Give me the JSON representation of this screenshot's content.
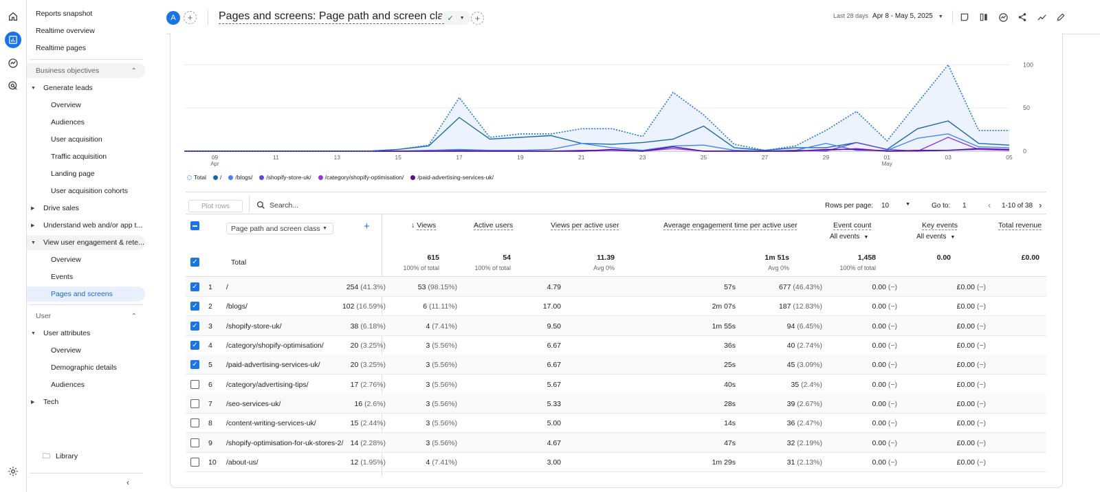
{
  "sidebar": {
    "items": [
      {
        "label": "Reports snapshot"
      },
      {
        "label": "Realtime overview"
      },
      {
        "label": "Realtime pages"
      },
      {
        "label": "Business objectives"
      },
      {
        "label": "Generate leads"
      },
      {
        "label": "Overview"
      },
      {
        "label": "Audiences"
      },
      {
        "label": "User acquisition"
      },
      {
        "label": "Traffic acquisition"
      },
      {
        "label": "Landing page"
      },
      {
        "label": "User acquisition cohorts"
      },
      {
        "label": "Drive sales"
      },
      {
        "label": "Understand web and/or app t..."
      },
      {
        "label": "View user engagement & rete..."
      },
      {
        "label": "Overview"
      },
      {
        "label": "Events"
      },
      {
        "label": "Pages and screens"
      },
      {
        "label": "User"
      },
      {
        "label": "User attributes"
      },
      {
        "label": "Overview"
      },
      {
        "label": "Demographic details"
      },
      {
        "label": "Audiences"
      },
      {
        "label": "Tech"
      }
    ],
    "library": "Library"
  },
  "header": {
    "avatar": "A",
    "title": "Pages and screens: Page path and screen class",
    "date_label": "Last 28 days",
    "date_range": "Apr 8 - May 5, 2025"
  },
  "chart_data": {
    "type": "line",
    "x": [
      "Apr 8",
      "Apr 9",
      "Apr 10",
      "Apr 11",
      "Apr 12",
      "Apr 13",
      "Apr 14",
      "Apr 15",
      "Apr 16",
      "Apr 17",
      "Apr 18",
      "Apr 19",
      "Apr 20",
      "Apr 21",
      "Apr 22",
      "Apr 23",
      "Apr 24",
      "Apr 25",
      "Apr 26",
      "Apr 27",
      "Apr 28",
      "Apr 29",
      "Apr 30",
      "May 1",
      "May 2",
      "May 3",
      "May 4",
      "May 5"
    ],
    "x_ticks": [
      {
        "day": "09",
        "month": "Apr"
      },
      {
        "day": "11",
        "month": ""
      },
      {
        "day": "13",
        "month": ""
      },
      {
        "day": "15",
        "month": ""
      },
      {
        "day": "17",
        "month": ""
      },
      {
        "day": "19",
        "month": ""
      },
      {
        "day": "21",
        "month": ""
      },
      {
        "day": "23",
        "month": ""
      },
      {
        "day": "25",
        "month": ""
      },
      {
        "day": "27",
        "month": ""
      },
      {
        "day": "29",
        "month": ""
      },
      {
        "day": "01",
        "month": "May"
      },
      {
        "day": "03",
        "month": ""
      },
      {
        "day": "05",
        "month": ""
      }
    ],
    "y_ticks": [
      "100",
      "50",
      "0"
    ],
    "ylim": [
      0,
      105
    ],
    "grid": true,
    "legend_position": "bottom-left",
    "series": [
      {
        "name": "Total",
        "color": "#1a73e8",
        "style": "dotted",
        "values": [
          0,
          0,
          0,
          0,
          0,
          0,
          0,
          2,
          7,
          62,
          16,
          20,
          20,
          26,
          26,
          17,
          68,
          42,
          8,
          1,
          6,
          24,
          46,
          12,
          56,
          100,
          24,
          24
        ]
      },
      {
        "name": "/",
        "color": "#1769aa",
        "style": "solid",
        "values": [
          0,
          0,
          0,
          0,
          0,
          0,
          0,
          2,
          6,
          39,
          14,
          16,
          18,
          9,
          8,
          10,
          14,
          29,
          4,
          1,
          4,
          4,
          10,
          2,
          26,
          35,
          9,
          7
        ]
      },
      {
        "name": "/blogs/",
        "color": "#4285f4",
        "style": "solid",
        "values": [
          0,
          0,
          0,
          0,
          0,
          0,
          0,
          0,
          1,
          2,
          1,
          1,
          2,
          9,
          4,
          1,
          6,
          7,
          1,
          0,
          1,
          9,
          1,
          1,
          15,
          20,
          5,
          4
        ]
      },
      {
        "name": "/shopify-store-uk/",
        "color": "#5c4ad8",
        "style": "solid",
        "values": [
          0,
          0,
          0,
          0,
          0,
          0,
          0,
          0,
          0,
          1,
          0,
          0,
          0,
          1,
          1,
          0,
          5,
          0,
          0,
          0,
          1,
          0,
          10,
          2,
          0,
          1,
          2,
          2
        ]
      },
      {
        "name": "/category/shopify-optimisation/",
        "color": "#9334e6",
        "style": "solid",
        "values": [
          0,
          0,
          0,
          0,
          0,
          0,
          0,
          0,
          0,
          0,
          0,
          0,
          0,
          0,
          1,
          0,
          3,
          0,
          0,
          0,
          0,
          1,
          3,
          0,
          0,
          16,
          2,
          1
        ]
      },
      {
        "name": "/paid-advertising-services-uk/",
        "color": "#5a0f8a",
        "style": "solid",
        "values": [
          0,
          0,
          0,
          0,
          0,
          0,
          0,
          0,
          0,
          0,
          0,
          0,
          0,
          0,
          2,
          0,
          5,
          0,
          0,
          0,
          0,
          2,
          2,
          0,
          1,
          1,
          3,
          2
        ]
      }
    ]
  },
  "toolbar": {
    "plot_rows": "Plot rows",
    "search_placeholder": "Search...",
    "rows_per_page_label": "Rows per page:",
    "rows_per_page": "10",
    "goto_label": "Go to:",
    "goto_value": "1",
    "range": "1-10 of 38"
  },
  "table": {
    "dimension": "Page path and screen class",
    "columns": [
      {
        "label": "Views",
        "sub": ""
      },
      {
        "label": "Active users",
        "sub": ""
      },
      {
        "label": "Views per active user",
        "sub": ""
      },
      {
        "label": "Average engagement time per active user",
        "sub": ""
      },
      {
        "label": "Event count",
        "sub": "All events"
      },
      {
        "label": "Key events",
        "sub": "All events"
      },
      {
        "label": "Total revenue",
        "sub": ""
      }
    ],
    "total": {
      "label": "Total",
      "views": "615",
      "views_sub": "100% of total",
      "users": "54",
      "users_sub": "100% of total",
      "vpu": "11.39",
      "vpu_sub": "Avg 0%",
      "eng": "1m 51s",
      "eng_sub": "Avg 0%",
      "events": "1,458",
      "events_sub": "100% of total",
      "key": "0.00",
      "rev": "£0.00"
    },
    "rows": [
      {
        "n": "1",
        "path": "/",
        "views": "254",
        "views_pct": "(41.3%)",
        "users": "53",
        "users_pct": "(98.15%)",
        "vpu": "4.79",
        "eng": "57s",
        "events": "677",
        "events_pct": "(46.43%)",
        "key": "0.00",
        "key_pct": "(−)",
        "rev": "£0.00",
        "rev_pct": "(−)",
        "checked": true
      },
      {
        "n": "2",
        "path": "/blogs/",
        "views": "102",
        "views_pct": "(16.59%)",
        "users": "6",
        "users_pct": "(11.11%)",
        "vpu": "17.00",
        "eng": "2m 07s",
        "events": "187",
        "events_pct": "(12.83%)",
        "key": "0.00",
        "key_pct": "(−)",
        "rev": "£0.00",
        "rev_pct": "(−)",
        "checked": true
      },
      {
        "n": "3",
        "path": "/shopify-store-uk/",
        "views": "38",
        "views_pct": "(6.18%)",
        "users": "4",
        "users_pct": "(7.41%)",
        "vpu": "9.50",
        "eng": "1m 55s",
        "events": "94",
        "events_pct": "(6.45%)",
        "key": "0.00",
        "key_pct": "(−)",
        "rev": "£0.00",
        "rev_pct": "(−)",
        "checked": true
      },
      {
        "n": "4",
        "path": "/category/shopify-optimisation/",
        "views": "20",
        "views_pct": "(3.25%)",
        "users": "3",
        "users_pct": "(5.56%)",
        "vpu": "6.67",
        "eng": "36s",
        "events": "40",
        "events_pct": "(2.74%)",
        "key": "0.00",
        "key_pct": "(−)",
        "rev": "£0.00",
        "rev_pct": "(−)",
        "checked": true
      },
      {
        "n": "5",
        "path": "/paid-advertising-services-uk/",
        "views": "20",
        "views_pct": "(3.25%)",
        "users": "3",
        "users_pct": "(5.56%)",
        "vpu": "6.67",
        "eng": "25s",
        "events": "45",
        "events_pct": "(3.09%)",
        "key": "0.00",
        "key_pct": "(−)",
        "rev": "£0.00",
        "rev_pct": "(−)",
        "checked": true
      },
      {
        "n": "6",
        "path": "/category/advertising-tips/",
        "views": "17",
        "views_pct": "(2.76%)",
        "users": "3",
        "users_pct": "(5.56%)",
        "vpu": "5.67",
        "eng": "40s",
        "events": "35",
        "events_pct": "(2.4%)",
        "key": "0.00",
        "key_pct": "(−)",
        "rev": "£0.00",
        "rev_pct": "(−)",
        "checked": false
      },
      {
        "n": "7",
        "path": "/seo-services-uk/",
        "views": "16",
        "views_pct": "(2.6%)",
        "users": "3",
        "users_pct": "(5.56%)",
        "vpu": "5.33",
        "eng": "28s",
        "events": "39",
        "events_pct": "(2.67%)",
        "key": "0.00",
        "key_pct": "(−)",
        "rev": "£0.00",
        "rev_pct": "(−)",
        "checked": false
      },
      {
        "n": "8",
        "path": "/content-writing-services-uk/",
        "views": "15",
        "views_pct": "(2.44%)",
        "users": "3",
        "users_pct": "(5.56%)",
        "vpu": "5.00",
        "eng": "14s",
        "events": "36",
        "events_pct": "(2.47%)",
        "key": "0.00",
        "key_pct": "(−)",
        "rev": "£0.00",
        "rev_pct": "(−)",
        "checked": false
      },
      {
        "n": "9",
        "path": "/shopify-optimisation-for-uk-stores-2/",
        "views": "14",
        "views_pct": "(2.28%)",
        "users": "3",
        "users_pct": "(5.56%)",
        "vpu": "4.67",
        "eng": "47s",
        "events": "32",
        "events_pct": "(2.19%)",
        "key": "0.00",
        "key_pct": "(−)",
        "rev": "£0.00",
        "rev_pct": "(−)",
        "checked": false
      },
      {
        "n": "10",
        "path": "/about-us/",
        "views": "12",
        "views_pct": "(1.95%)",
        "users": "4",
        "users_pct": "(7.41%)",
        "vpu": "3.00",
        "eng": "1m 29s",
        "events": "31",
        "events_pct": "(2.13%)",
        "key": "0.00",
        "key_pct": "(−)",
        "rev": "£0.00",
        "rev_pct": "(−)",
        "checked": false
      }
    ]
  }
}
